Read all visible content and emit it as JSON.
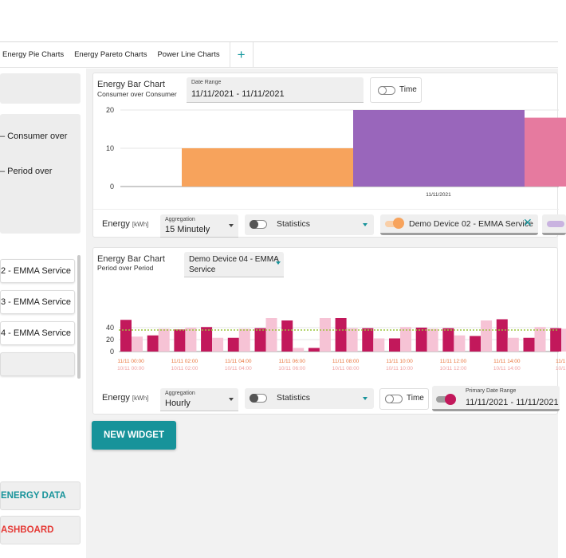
{
  "tabs": [
    "Energy Pie Charts",
    "Energy Pareto Charts",
    "Power Line Charts"
  ],
  "tab_add": "+",
  "left_panel": {
    "text_1": "– Consumer over",
    "text_2": "– Period over",
    "devices": [
      "2 - EMMA Service",
      "3 - EMMA Service",
      "4 - EMMA Service"
    ],
    "energy_data_btn": "ENERGY DATA",
    "dashboard_btn": "ASHBOARD"
  },
  "widget1": {
    "title": "Energy Bar Chart",
    "subtitle": "Consumer over Consumer",
    "date_range_label": "Date Range",
    "date_range_value": "11/11/2021 - 11/11/2021",
    "time_label": "Time",
    "energy_label": "Energy",
    "unit": "[kWh]",
    "aggregation_label": "Aggregation",
    "aggregation_value": "15 Minutely",
    "statistics_label": "Statistics",
    "device_chip": "Demo Device 02 - EMMA Service",
    "chip_color": "#f7a35c"
  },
  "widget2": {
    "title": "Energy Bar Chart",
    "subtitle": "Period over Period",
    "device_line1": "Demo Device 04 - EMMA",
    "device_line2": "Service",
    "energy_label": "Energy",
    "unit": "[kWh]",
    "aggregation_label": "Aggregation",
    "aggregation_value": "Hourly",
    "statistics_label": "Statistics",
    "time_label": "Time",
    "primary_label": "Primary Date Range",
    "primary_value": "11/11/2021 - 11/11/2021",
    "chip_color": "#c2185b"
  },
  "new_widget": "NEW WIDGET",
  "colors": {
    "accent": "#17939a",
    "danger": "#e53935",
    "primary_series": "#c2185b",
    "compare_series": "#f6c3d5",
    "avg_line": "#9bc53d"
  },
  "chart_data": [
    {
      "type": "bar",
      "yticks": [
        0,
        10,
        20
      ],
      "xlabel": "11/11/2021",
      "series": [
        {
          "color": "#f7a35c",
          "value": 10
        },
        {
          "color": "#9966bb",
          "value": 20
        },
        {
          "color": "#e67a9f",
          "value": 18
        }
      ]
    },
    {
      "type": "bar",
      "yticks": [
        0,
        20,
        40
      ],
      "average": 36,
      "series": [
        {
          "name": "primary",
          "color": "#c2185b",
          "values": [
            53,
            27,
            37,
            41,
            23,
            39,
            52,
            6,
            56,
            39,
            22,
            40,
            39,
            26,
            54,
            23,
            39
          ]
        },
        {
          "name": "compare",
          "color": "#f6c3d5",
          "values": [
            25,
            38,
            40,
            23,
            38,
            56,
            6,
            56,
            39,
            22,
            41,
            38,
            27,
            52,
            23,
            41,
            38
          ]
        }
      ],
      "xticks_primary": [
        "11/11 00:00",
        "11/11 02:00",
        "11/11 04:00",
        "11/11 06:00",
        "11/11 08:00",
        "11/11 10:00",
        "11/11 12:00",
        "11/11 14:00",
        "11/1"
      ],
      "xticks_compare": [
        "10/11 00:00",
        "10/11 02:00",
        "10/11 04:00",
        "10/11 06:00",
        "10/11 08:00",
        "10/11 10:00",
        "10/11 12:00",
        "10/11 14:00",
        "10/1"
      ]
    }
  ]
}
